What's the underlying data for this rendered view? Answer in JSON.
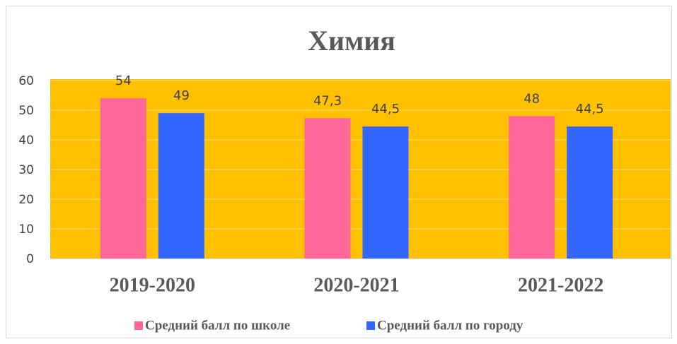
{
  "chart_data": {
    "type": "bar",
    "title": "Химия",
    "categories": [
      "2019-2020",
      "2020-2021",
      "2021-2022"
    ],
    "series": [
      {
        "name": "Средний балл по школе",
        "color": "#ff6699",
        "values": [
          54,
          47.3,
          48
        ],
        "value_labels": [
          "54",
          "47,3",
          "48"
        ]
      },
      {
        "name": "Средний балл по городу",
        "color": "#3366ff",
        "values": [
          49,
          44.5,
          44.5
        ],
        "value_labels": [
          "49",
          "44,5",
          "44,5"
        ]
      }
    ],
    "ylim": [
      0,
      60
    ],
    "yticks": [
      0,
      10,
      20,
      30,
      40,
      50,
      60
    ],
    "grid": true,
    "plot_background": "#ffc000",
    "legend": "bottom"
  }
}
